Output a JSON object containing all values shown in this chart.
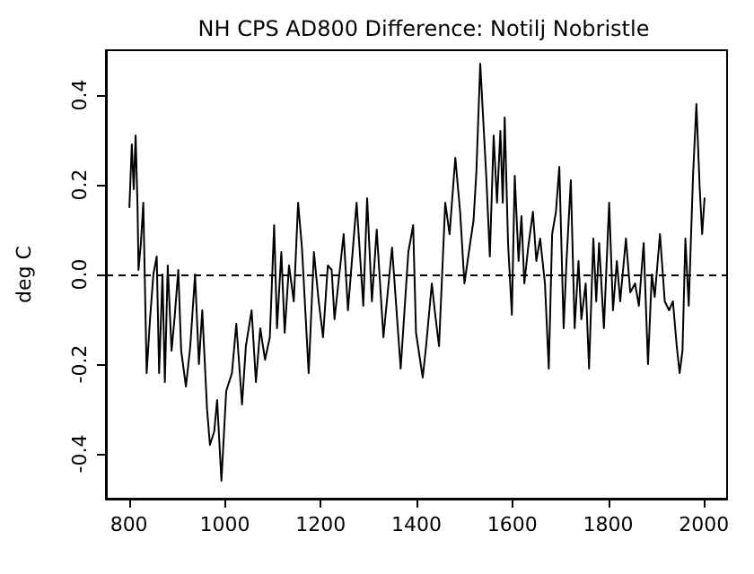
{
  "chart_data": {
    "type": "line",
    "title": "NH CPS AD800 Difference: Notilj Nobristle",
    "ylabel": "deg C",
    "x": [
      801,
      806,
      810,
      814,
      818,
      820,
      825,
      830,
      837,
      844,
      851,
      858,
      863,
      870,
      875,
      881,
      889,
      895,
      903,
      909,
      919,
      928,
      938,
      946,
      953,
      963,
      969,
      978,
      984,
      993,
      1003,
      1015,
      1024,
      1036,
      1044,
      1056,
      1065,
      1074,
      1084,
      1094,
      1103,
      1109,
      1118,
      1125,
      1134,
      1144,
      1153,
      1161,
      1168,
      1175,
      1186,
      1196,
      1205,
      1215,
      1223,
      1229,
      1248,
      1257,
      1275,
      1289,
      1297,
      1307,
      1317,
      1331,
      1349,
      1367,
      1383,
      1393,
      1399,
      1413,
      1420,
      1432,
      1438,
      1447,
      1460,
      1469,
      1481,
      1491,
      1500,
      1512,
      1519,
      1525,
      1533,
      1541,
      1546,
      1553,
      1561,
      1568,
      1575,
      1580,
      1584,
      1591,
      1599,
      1605,
      1613,
      1619,
      1625,
      1633,
      1643,
      1650,
      1658,
      1668,
      1676,
      1683,
      1691,
      1698,
      1707,
      1713,
      1722,
      1730,
      1738,
      1744,
      1753,
      1760,
      1769,
      1775,
      1781,
      1791,
      1802,
      1810,
      1818,
      1825,
      1837,
      1846,
      1856,
      1864,
      1874,
      1883,
      1891,
      1897,
      1908,
      1918,
      1927,
      1935,
      1943,
      1949,
      1955,
      1961,
      1968,
      1977,
      1984,
      1991,
      1996,
      2001
    ],
    "values": [
      0.15,
      0.29,
      0.19,
      0.31,
      0.15,
      0.01,
      0.07,
      0.16,
      -0.22,
      -0.1,
      0.0,
      0.04,
      -0.22,
      0.0,
      -0.24,
      0.02,
      -0.17,
      -0.1,
      0.01,
      -0.17,
      -0.25,
      -0.16,
      0.0,
      -0.2,
      -0.08,
      -0.3,
      -0.38,
      -0.35,
      -0.28,
      -0.46,
      -0.26,
      -0.22,
      -0.11,
      -0.29,
      -0.16,
      -0.08,
      -0.24,
      -0.12,
      -0.19,
      -0.14,
      0.11,
      -0.12,
      0.05,
      -0.13,
      0.02,
      -0.06,
      0.16,
      0.06,
      -0.08,
      -0.22,
      0.05,
      -0.06,
      -0.14,
      0.02,
      0.01,
      -0.1,
      0.09,
      -0.08,
      0.16,
      -0.07,
      0.17,
      -0.06,
      0.1,
      -0.14,
      0.06,
      -0.21,
      0.05,
      0.11,
      -0.13,
      -0.23,
      -0.16,
      -0.02,
      -0.08,
      -0.16,
      0.16,
      0.09,
      0.26,
      0.14,
      -0.02,
      0.07,
      0.12,
      0.23,
      0.47,
      0.31,
      0.21,
      0.04,
      0.31,
      0.16,
      0.32,
      0.16,
      0.35,
      0.07,
      -0.09,
      0.22,
      0.03,
      0.13,
      -0.02,
      0.06,
      0.14,
      0.03,
      0.08,
      -0.02,
      -0.21,
      0.09,
      0.14,
      0.24,
      -0.12,
      0.03,
      0.21,
      -0.12,
      0.03,
      -0.1,
      -0.02,
      -0.21,
      0.08,
      -0.06,
      0.07,
      -0.12,
      0.16,
      -0.08,
      0.03,
      -0.06,
      0.08,
      -0.04,
      -0.02,
      -0.07,
      0.07,
      -0.2,
      0.0,
      -0.05,
      0.09,
      -0.06,
      -0.08,
      -0.06,
      -0.16,
      -0.22,
      -0.17,
      0.08,
      -0.07,
      0.22,
      0.38,
      0.19,
      0.09,
      0.17
    ],
    "color": "#000000",
    "marker": "none",
    "line_style": "solid",
    "grid": false,
    "xlim": [
      752,
      2048
    ],
    "ylim": [
      -0.5,
      0.5
    ],
    "xticks": [
      800,
      1000,
      1200,
      1400,
      1600,
      1800,
      2000
    ],
    "yticks": [
      -0.4,
      -0.2,
      {
        "value": 0,
        "label": "0.0"
      },
      0.2,
      0.4
    ],
    "ref_lines": [
      {
        "axis": "y",
        "value": 0,
        "line_style": "dashed",
        "color": "#000000"
      }
    ]
  }
}
